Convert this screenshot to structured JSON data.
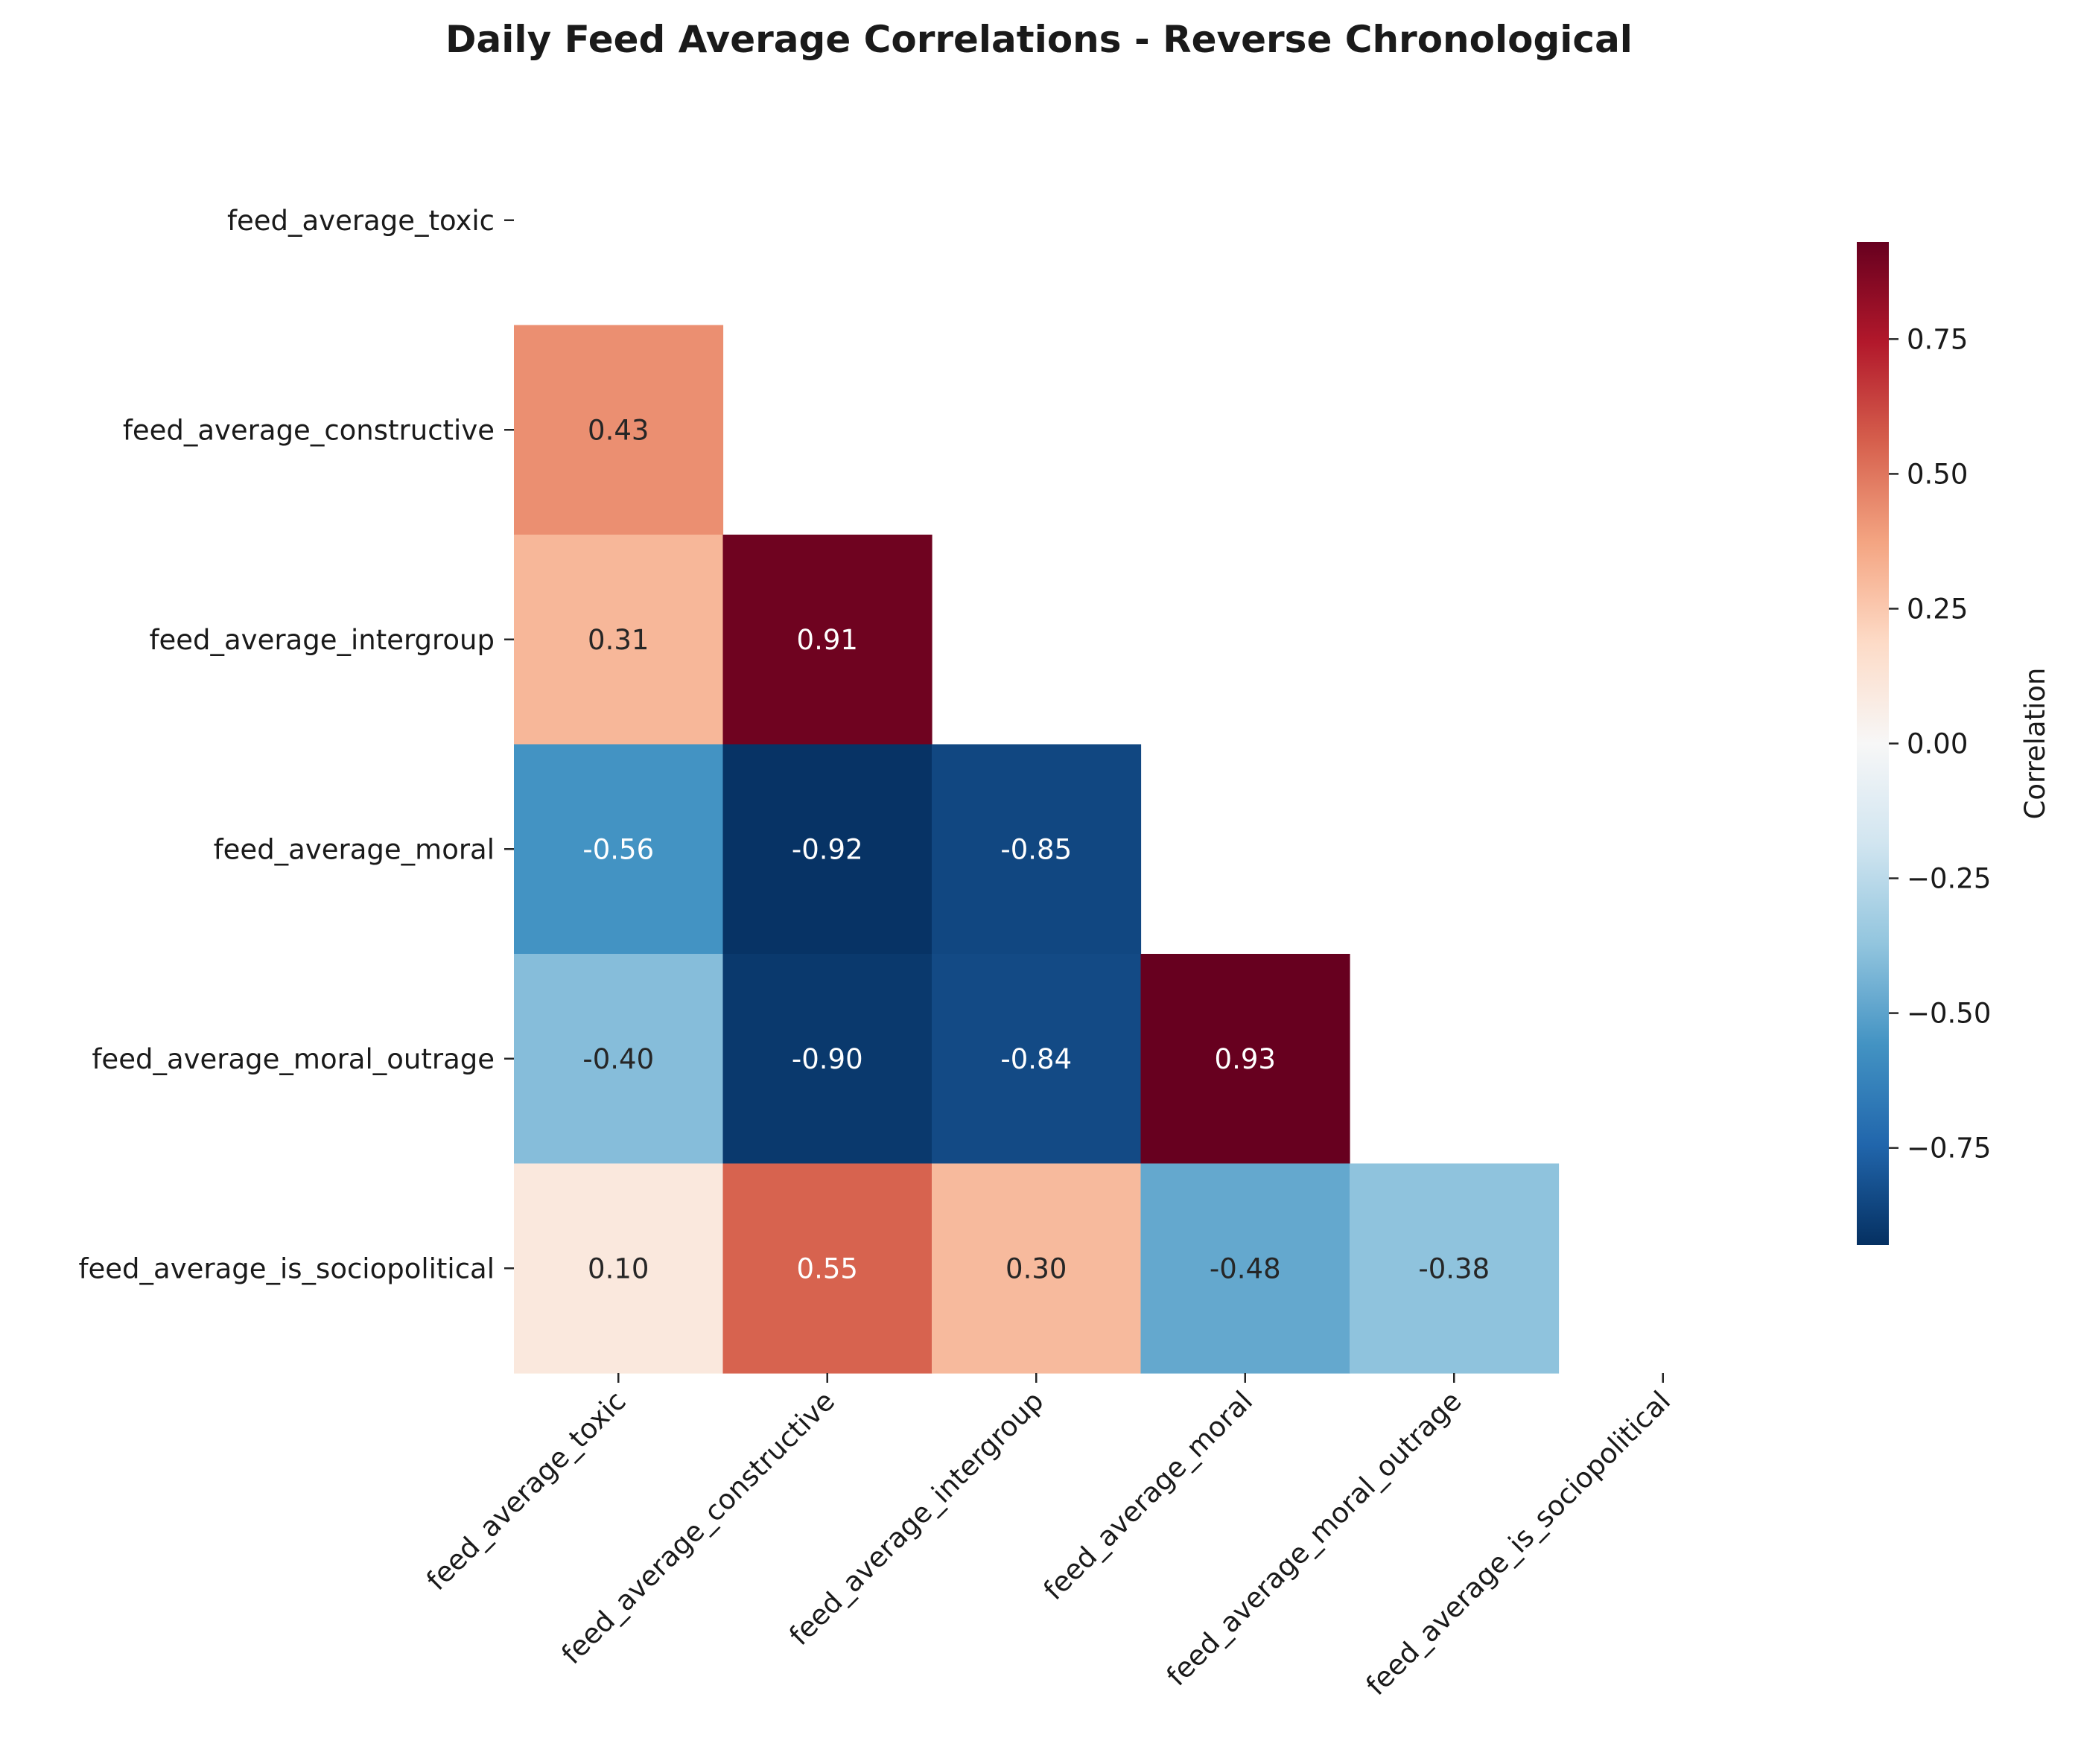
{
  "chart_data": {
    "type": "heatmap",
    "title": "Daily Feed Average Correlations - Reverse Chronological",
    "variables": [
      "feed_average_toxic",
      "feed_average_constructive",
      "feed_average_intergroup",
      "feed_average_moral",
      "feed_average_moral_outrage",
      "feed_average_is_sociopolitical"
    ],
    "mask": "upper-triangle-including-diagonal",
    "values": [
      [
        null,
        null,
        null,
        null,
        null,
        null
      ],
      [
        0.43,
        null,
        null,
        null,
        null,
        null
      ],
      [
        0.31,
        0.91,
        null,
        null,
        null,
        null
      ],
      [
        -0.56,
        -0.92,
        -0.85,
        null,
        null,
        null
      ],
      [
        -0.4,
        -0.9,
        -0.84,
        0.93,
        null,
        null
      ],
      [
        0.1,
        0.55,
        0.3,
        -0.48,
        -0.38,
        null
      ]
    ],
    "colormap": "RdBu_r",
    "vlim": [
      -0.93,
      0.93
    ],
    "colorbar": {
      "label": "Correlation",
      "ticks": [
        "0.75",
        "0.50",
        "0.25",
        "0.00",
        "−0.25",
        "−0.50",
        "−0.75"
      ]
    },
    "annotation_format": "two-decimals"
  }
}
